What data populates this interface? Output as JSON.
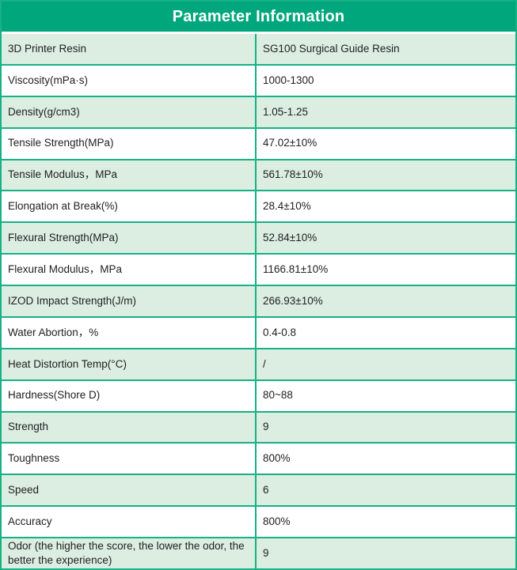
{
  "table": {
    "title": "Parameter Information",
    "columns": [
      "parameter",
      "value"
    ],
    "rows": [
      {
        "param": "3D Printer Resin",
        "value": "SG100 Surgical Guide Resin"
      },
      {
        "param": "Viscosity(mPa·s)",
        "value": "1000-1300"
      },
      {
        "param": "Density(g/cm3)",
        "value": "1.05-1.25"
      },
      {
        "param": "Tensile Strength(MPa)",
        "value": "47.02±10%"
      },
      {
        "param": "Tensile Modulus，MPa",
        "value": "561.78±10%"
      },
      {
        "param": "Elongation at Break(%)",
        "value": "28.4±10%"
      },
      {
        "param": "Flexural Strength(MPa)",
        "value": "52.84±10%"
      },
      {
        "param": "Flexural Modulus，MPa",
        "value": "1166.81±10%"
      },
      {
        "param": "IZOD Impact Strength(J/m)",
        "value": "266.93±10%"
      },
      {
        "param": "Water Abortion，%",
        "value": "0.4-0.8"
      },
      {
        "param": "Heat Distortion Temp(°C)",
        "value": "/"
      },
      {
        "param": "Hardness(Shore D)",
        "value": "80~88"
      },
      {
        "param": "Strength",
        "value": "9"
      },
      {
        "param": "Toughness",
        "value": "800%"
      },
      {
        "param": "Speed",
        "value": "6"
      },
      {
        "param": "Accuracy",
        "value": "800%"
      },
      {
        "param": "Odor (the higher the score, the lower the odor, the better the experience)",
        "value": "9"
      }
    ],
    "colors": {
      "header_green": "#00a77d",
      "border_green": "#16b185",
      "row_alt_green": "#dcede2",
      "header_text": "#ffffff",
      "body_text": "#1f1f1f"
    }
  }
}
